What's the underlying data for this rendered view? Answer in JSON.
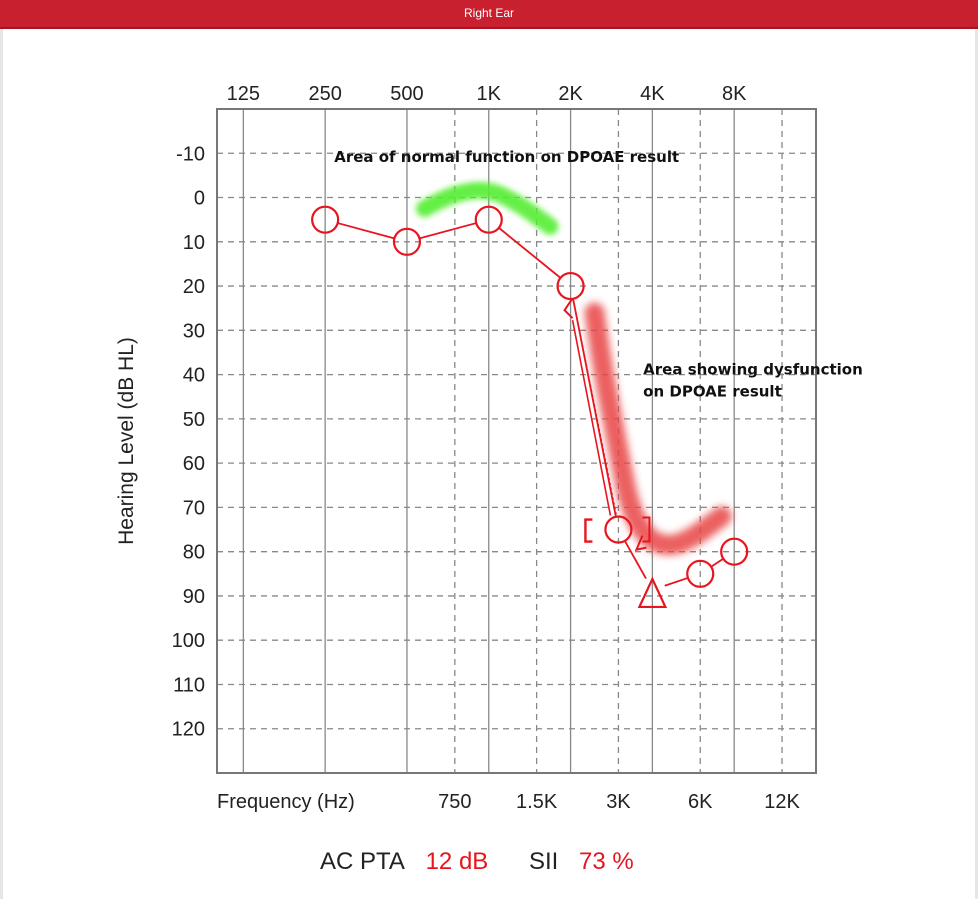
{
  "window": {
    "title": "Right Ear"
  },
  "summary": {
    "ac_pta_label": "AC PTA",
    "ac_pta_value": "12 dB",
    "sii_label": "SII",
    "sii_value": "73 %"
  },
  "colors": {
    "air_conduction": "#e8141e",
    "normal_highlight": "#55ee33",
    "dysfunction_highlight": "#e84545",
    "grid": "#888888",
    "accent": "#c8202f"
  },
  "chart_data": {
    "type": "line",
    "title": "",
    "xlabel": "Frequency (Hz)",
    "ylabel": "Hearing Level (dB HL)",
    "x_scale": "log",
    "xlim": [
      100,
      16000
    ],
    "ylim": [
      -20,
      130
    ],
    "y_inverted": true,
    "grid": true,
    "top_ticks": [
      {
        "f": 125,
        "label": "125"
      },
      {
        "f": 250,
        "label": "250"
      },
      {
        "f": 500,
        "label": "500"
      },
      {
        "f": 1000,
        "label": "1K"
      },
      {
        "f": 2000,
        "label": "2K"
      },
      {
        "f": 4000,
        "label": "4K"
      },
      {
        "f": 8000,
        "label": "8K"
      }
    ],
    "bottom_ticks": [
      {
        "f": 750,
        "label": "750"
      },
      {
        "f": 1500,
        "label": "1.5K"
      },
      {
        "f": 3000,
        "label": "3K"
      },
      {
        "f": 6000,
        "label": "6K"
      },
      {
        "f": 12000,
        "label": "12K"
      }
    ],
    "y_ticks": [
      -10,
      0,
      10,
      20,
      30,
      40,
      50,
      60,
      70,
      80,
      90,
      100,
      110,
      120
    ],
    "series": [
      {
        "name": "",
        "symbol": "circle",
        "points": [
          {
            "f": 250,
            "db": 5
          },
          {
            "f": 500,
            "db": 10
          },
          {
            "f": 1000,
            "db": 5
          },
          {
            "f": 2000,
            "db": 20
          },
          {
            "f": 3000,
            "db": 75
          },
          {
            "f": 6000,
            "db": 85
          },
          {
            "f": 8000,
            "db": 80
          }
        ]
      },
      {
        "name": "",
        "symbol": "triangle",
        "points": [
          {
            "f": 4000,
            "db": 90
          }
        ]
      },
      {
        "name": "",
        "symbol": "bracket",
        "points": [
          {
            "f": 3000,
            "db": 75
          }
        ]
      },
      {
        "name": "",
        "symbol": "arrow",
        "points": [
          {
            "f": 2000,
            "db": 25
          },
          {
            "f": 3000,
            "db": 80
          }
        ]
      }
    ],
    "highlights": [
      {
        "kind": "normal",
        "points": [
          {
            "f": 580,
            "db": 2.5
          },
          {
            "f": 750,
            "db": -1
          },
          {
            "f": 1000,
            "db": -2
          },
          {
            "f": 1300,
            "db": 1.5
          },
          {
            "f": 1680,
            "db": 6.5
          }
        ]
      },
      {
        "kind": "dysfunction",
        "points": [
          {
            "f": 2450,
            "db": 26
          },
          {
            "f": 2650,
            "db": 40
          },
          {
            "f": 3000,
            "db": 57
          },
          {
            "f": 3300,
            "db": 70
          },
          {
            "f": 3800,
            "db": 77
          },
          {
            "f": 4600,
            "db": 79
          },
          {
            "f": 5600,
            "db": 77
          },
          {
            "f": 7200,
            "db": 72
          }
        ]
      }
    ],
    "annotations": [
      {
        "text": "Area of normal function on DPOAE result",
        "f": 270,
        "db": -8
      },
      {
        "text": "Area showing dysfunction",
        "f": 3700,
        "db": 40
      },
      {
        "text": "on DPOAE result",
        "f": 3700,
        "db": 45
      }
    ]
  }
}
